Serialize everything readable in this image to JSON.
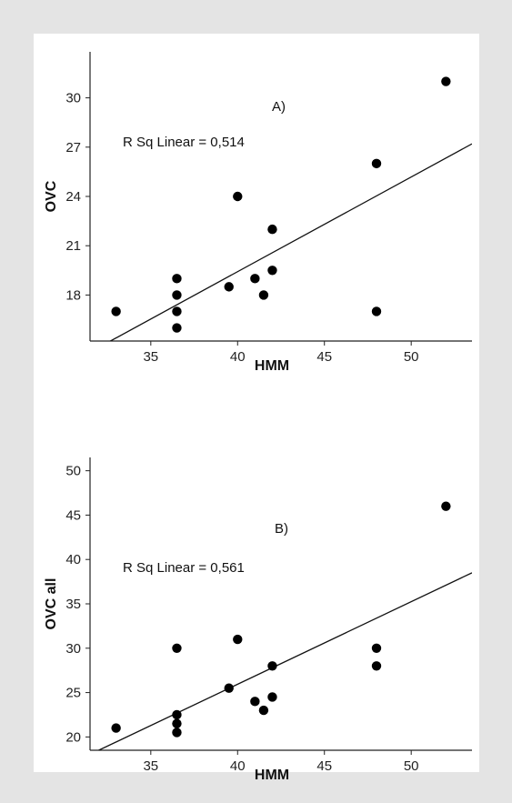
{
  "chart_data": [
    {
      "type": "scatter",
      "panel_label": "A)",
      "annotation": "R Sq Linear = 0,514",
      "xlabel": "HMM",
      "ylabel": "OVC",
      "xlim": [
        31.5,
        53.5
      ],
      "ylim": [
        15.2,
        32.8
      ],
      "x_ticks": [
        35,
        40,
        45,
        50
      ],
      "y_ticks": [
        18,
        21,
        24,
        27,
        30
      ],
      "points": [
        {
          "x": 33,
          "y": 17
        },
        {
          "x": 36.5,
          "y": 16
        },
        {
          "x": 36.5,
          "y": 17
        },
        {
          "x": 36.5,
          "y": 18
        },
        {
          "x": 36.5,
          "y": 19
        },
        {
          "x": 39.5,
          "y": 18.5
        },
        {
          "x": 40,
          "y": 24
        },
        {
          "x": 41,
          "y": 19
        },
        {
          "x": 41.5,
          "y": 18
        },
        {
          "x": 42,
          "y": 19.5
        },
        {
          "x": 42,
          "y": 22
        },
        {
          "x": 48,
          "y": 17
        },
        {
          "x": 48,
          "y": 26
        },
        {
          "x": 52,
          "y": 31
        }
      ],
      "fit_line": {
        "x": [
          32.5,
          53.5
        ],
        "y": [
          15.1,
          27.2
        ]
      },
      "grid": false,
      "legend": "none"
    },
    {
      "type": "scatter",
      "panel_label": "B)",
      "annotation": "R Sq Linear = 0,561",
      "xlabel": "HMM",
      "ylabel": "OVC all",
      "xlim": [
        31.5,
        53.5
      ],
      "ylim": [
        18.5,
        51.5
      ],
      "x_ticks": [
        35,
        40,
        45,
        50
      ],
      "y_ticks": [
        20,
        25,
        30,
        35,
        40,
        45,
        50
      ],
      "points": [
        {
          "x": 33,
          "y": 21
        },
        {
          "x": 36.5,
          "y": 20.5
        },
        {
          "x": 36.5,
          "y": 21.5
        },
        {
          "x": 36.5,
          "y": 22.5
        },
        {
          "x": 36.5,
          "y": 30
        },
        {
          "x": 39.5,
          "y": 25.5
        },
        {
          "x": 40,
          "y": 31
        },
        {
          "x": 41,
          "y": 24
        },
        {
          "x": 41.5,
          "y": 23
        },
        {
          "x": 42,
          "y": 24.5
        },
        {
          "x": 42,
          "y": 28
        },
        {
          "x": 48,
          "y": 28
        },
        {
          "x": 48,
          "y": 30
        },
        {
          "x": 52,
          "y": 46
        }
      ],
      "fit_line": {
        "x": [
          32,
          53.5
        ],
        "y": [
          18.5,
          38.5
        ]
      },
      "grid": false,
      "legend": "none"
    }
  ]
}
